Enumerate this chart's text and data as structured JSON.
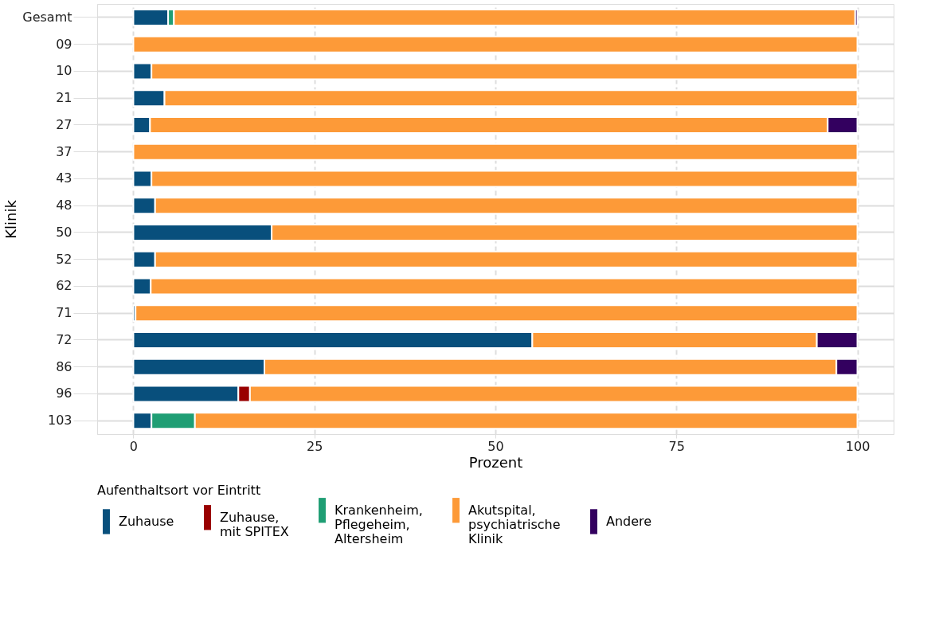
{
  "chart_data": {
    "type": "bar",
    "orientation": "horizontal",
    "stacked": true,
    "categories": [
      "Gesamt",
      "09",
      "10",
      "21",
      "27",
      "37",
      "43",
      "48",
      "50",
      "52",
      "62",
      "71",
      "72",
      "86",
      "96",
      "103"
    ],
    "xlabel": "Prozent",
    "ylabel": "Klinik",
    "legend_title": "Aufenthaltsort vor Eintritt",
    "legend": "bottom",
    "xlim": [
      -5,
      105
    ],
    "xticks": [
      0,
      25,
      50,
      75,
      100
    ],
    "grid": true,
    "series": [
      {
        "name": "Zuhause",
        "color": "#084f7c",
        "values": [
          4.8,
          null,
          2.5,
          4.3,
          2.3,
          null,
          2.5,
          3.0,
          19.1,
          3.0,
          2.4,
          0.3,
          55.1,
          18.1,
          14.5,
          2.5
        ]
      },
      {
        "name": "Zuhause,\nmit SPITEX",
        "color": "#990000",
        "values": [
          null,
          null,
          null,
          null,
          null,
          null,
          null,
          null,
          null,
          null,
          null,
          null,
          null,
          null,
          1.6,
          null
        ]
      },
      {
        "name": "Krankenheim,\nPflegeheim,\nAltersheim",
        "color": "#1f9e74",
        "values": [
          0.8,
          null,
          null,
          null,
          null,
          null,
          null,
          null,
          null,
          null,
          null,
          null,
          null,
          null,
          null,
          6.0
        ]
      },
      {
        "name": "Akutspital,\npsychiatrische\nKlinik",
        "color": "#fd9a38",
        "values": [
          94.1,
          100,
          97.5,
          95.7,
          93.6,
          100,
          97.5,
          97.0,
          80.9,
          97.0,
          97.6,
          99.7,
          39.3,
          79.0,
          83.9,
          91.5
        ]
      },
      {
        "name": "Andere",
        "color": "#33005f",
        "values": [
          0.3,
          null,
          null,
          null,
          4.1,
          null,
          null,
          null,
          null,
          null,
          null,
          null,
          5.6,
          2.9,
          null,
          null
        ]
      }
    ]
  }
}
